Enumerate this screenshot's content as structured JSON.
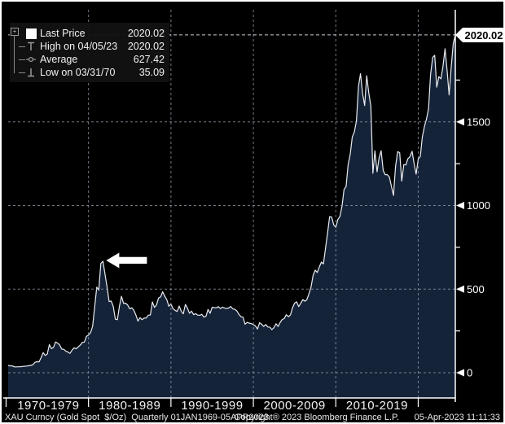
{
  "legend": {
    "expander": "+",
    "rows": [
      {
        "marker": "square-swatch",
        "label": "Last Price",
        "value": "2020.02"
      },
      {
        "marker": "high-marker",
        "label": "High on 04/05/23",
        "value": "2020.02"
      },
      {
        "marker": "average-marker",
        "label": "Average",
        "value": "627.42"
      },
      {
        "marker": "low-marker",
        "label": "Low on 03/31/70",
        "value": "35.09"
      }
    ]
  },
  "price_flag": {
    "value": "2020.02"
  },
  "footer": {
    "security_label": "XAU Curncy (Gold Spot  $/Oz)  Quarterly 01JAN1969-05APR2023",
    "copyright": "Copyright® 2023 Bloomberg Finance L.P.",
    "timestamp": "05-Apr-2023 11:11:33"
  },
  "colors": {
    "background": "#000000",
    "area_fill": "#152339",
    "line": "#e9ecf0",
    "grid": "#97a1b1",
    "last_price_line": "#c8ced8",
    "axis": "#ffffff",
    "flag_bg": "#ffffff",
    "flag_text": "#000000",
    "legend_bg": "#121212",
    "annotation_arrow": "#ffffff"
  },
  "chart_data": {
    "type": "area",
    "title": "XAU Curncy (Gold Spot $/Oz) Quarterly 01JAN1969-05APR2023",
    "frequency": "quarterly",
    "start": "1969-Q1",
    "end": "05-Apr-2023",
    "last_price": 2020.02,
    "high": {
      "date": "04/05/23",
      "value": 2020.02
    },
    "average": 627.42,
    "low": {
      "date": "03/31/70",
      "value": 35.09
    },
    "x_axis": {
      "decade_labels": [
        "1970-1979",
        "1980-1989",
        "1990-1999",
        "2000-2009",
        "2010-2019"
      ],
      "gridline_years": [
        1979,
        1989,
        1999,
        2009,
        2019
      ],
      "tick_years": [
        1969,
        1979,
        1989,
        1999,
        2009,
        2019
      ]
    },
    "y_axis": {
      "side": "right",
      "major_ticks": [
        0,
        500,
        1000,
        1500
      ],
      "minor_ticks": [
        250,
        750,
        1250,
        1750
      ],
      "range": [
        -160,
        2190
      ],
      "grid": true
    },
    "annotation": {
      "type": "arrow",
      "target": "1980 price spike",
      "direction": "left"
    },
    "values": [
      43.2,
      41.3,
      40.9,
      35.2,
      35.09,
      35.4,
      36.2,
      37.4,
      38.9,
      40.1,
      42.0,
      43.6,
      48.3,
      62.1,
      65.5,
      64.9,
      90.5,
      120.1,
      103.0,
      112.3,
      168.4,
      144.2,
      151.8,
      183.9,
      177.3,
      166.3,
      141.3,
      140.3,
      129.6,
      123.8,
      116.0,
      134.8,
      148.9,
      143.0,
      154.1,
      164.9,
      181.6,
      183.1,
      217.1,
      226.0,
      240.1,
      277.5,
      397.3,
      512.0,
      494.5,
      653.0,
      666.8,
      589.8,
      513.8,
      426.0,
      428.8,
      397.5,
      320.0,
      317.5,
      397.0,
      456.9,
      414.8,
      416.0,
      405.0,
      382.4,
      388.5,
      373.1,
      343.8,
      309.0,
      329.3,
      317.2,
      326.5,
      327.0,
      344.0,
      345.5,
      423.2,
      390.9,
      405.9,
      447.3,
      453.3,
      484.1,
      457.0,
      436.6,
      397.7,
      410.3,
      383.2,
      373.0,
      366.5,
      398.6,
      368.3,
      352.2,
      408.4,
      386.2,
      355.7,
      368.3,
      347.4,
      353.2,
      344.3,
      343.4,
      349.0,
      332.9,
      337.8,
      378.5,
      355.3,
      391.3,
      389.3,
      388.2,
      394.9,
      383.3,
      392.1,
      387.4,
      384.0,
      387.0,
      396.3,
      382.0,
      379.0,
      369.3,
      348.2,
      334.6,
      332.1,
      290.2,
      301.0,
      296.3,
      293.9,
      287.8,
      279.9,
      261.3,
      299.0,
      290.3,
      276.8,
      288.2,
      273.7,
      272.7,
      257.7,
      270.6,
      293.1,
      276.5,
      301.4,
      318.5,
      323.7,
      347.2,
      334.9,
      346.0,
      388.0,
      416.3,
      423.7,
      395.8,
      415.7,
      437.6,
      427.5,
      437.1,
      473.3,
      513.0,
      582.0,
      613.5,
      599.3,
      632.0,
      661.8,
      650.5,
      743.0,
      833.8,
      933.5,
      930.3,
      884.5,
      869.8,
      916.5,
      934.5,
      995.8,
      1096.2,
      1113.3,
      1244.0,
      1307.0,
      1410.3,
      1439.0,
      1505.5,
      1712.0,
      1788.0,
      1668.0,
      1597.5,
      1776.0,
      1675.4,
      1594.8,
      1192.0,
      1326.5,
      1201.5,
      1283.8,
      1327.3,
      1208.2,
      1184.1,
      1184.3,
      1171.0,
      1114.0,
      1060.2,
      1232.7,
      1322.2,
      1315.8,
      1145.9,
      1244.9,
      1242.3,
      1280.2,
      1291.0,
      1323.9,
      1250.5,
      1187.3,
      1279.0,
      1292.4,
      1409.6,
      1472.4,
      1517.3,
      1577.2,
      1780.9,
      1885.8,
      1898.4,
      1707.7,
      1770.1,
      1757.0,
      1829.2,
      1937.4,
      1807.3,
      1660.6,
      1824.0,
      1969.3,
      2020.02
    ]
  }
}
